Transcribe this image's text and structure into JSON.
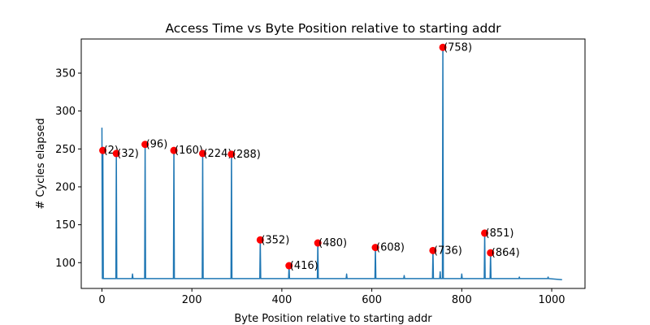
{
  "chart_data": {
    "type": "line",
    "title": "Access Time vs Byte Position relative to starting addr",
    "xlabel": "Byte Position relative to starting addr",
    "ylabel": "# Cycles elapsed",
    "xlim": [
      -46,
      1074
    ],
    "ylim": [
      66,
      395
    ],
    "x_ticks": [
      0,
      200,
      400,
      600,
      800,
      1000
    ],
    "y_ticks": [
      100,
      150,
      200,
      250,
      300,
      350
    ],
    "x_tick_labels": [
      "0",
      "200",
      "400",
      "600",
      "800",
      "1000"
    ],
    "y_tick_labels": [
      "100",
      "150",
      "200",
      "250",
      "300",
      "350"
    ],
    "grid": false,
    "line_color": "#1f77b4",
    "marker_color": "#ff0000",
    "baseline": 79,
    "x_max": 1023,
    "spikes": [
      {
        "x": 0,
        "y": 278
      },
      {
        "x": 2,
        "y": 248
      },
      {
        "x": 32,
        "y": 244
      },
      {
        "x": 68,
        "y": 85
      },
      {
        "x": 96,
        "y": 256
      },
      {
        "x": 160,
        "y": 248
      },
      {
        "x": 224,
        "y": 244
      },
      {
        "x": 288,
        "y": 243
      },
      {
        "x": 352,
        "y": 130
      },
      {
        "x": 416,
        "y": 96
      },
      {
        "x": 480,
        "y": 126
      },
      {
        "x": 544,
        "y": 85
      },
      {
        "x": 608,
        "y": 120
      },
      {
        "x": 672,
        "y": 83
      },
      {
        "x": 736,
        "y": 116
      },
      {
        "x": 752,
        "y": 88
      },
      {
        "x": 758,
        "y": 384
      },
      {
        "x": 800,
        "y": 85
      },
      {
        "x": 851,
        "y": 139
      },
      {
        "x": 864,
        "y": 113
      },
      {
        "x": 928,
        "y": 81
      },
      {
        "x": 992,
        "y": 81
      }
    ],
    "markers": [
      {
        "x": 2,
        "y": 248,
        "label": "(2)"
      },
      {
        "x": 32,
        "y": 244,
        "label": "(32)"
      },
      {
        "x": 96,
        "y": 256,
        "label": "(96)"
      },
      {
        "x": 160,
        "y": 248,
        "label": "(160)"
      },
      {
        "x": 224,
        "y": 244,
        "label": "(224)"
      },
      {
        "x": 288,
        "y": 243,
        "label": "(288)"
      },
      {
        "x": 352,
        "y": 130,
        "label": "(352)"
      },
      {
        "x": 416,
        "y": 96,
        "label": "(416)"
      },
      {
        "x": 480,
        "y": 126,
        "label": "(480)"
      },
      {
        "x": 608,
        "y": 120,
        "label": "(608)"
      },
      {
        "x": 736,
        "y": 116,
        "label": "(736)"
      },
      {
        "x": 758,
        "y": 384,
        "label": "(758)"
      },
      {
        "x": 851,
        "y": 139,
        "label": "(851)"
      },
      {
        "x": 864,
        "y": 113,
        "label": "(864)"
      }
    ]
  }
}
